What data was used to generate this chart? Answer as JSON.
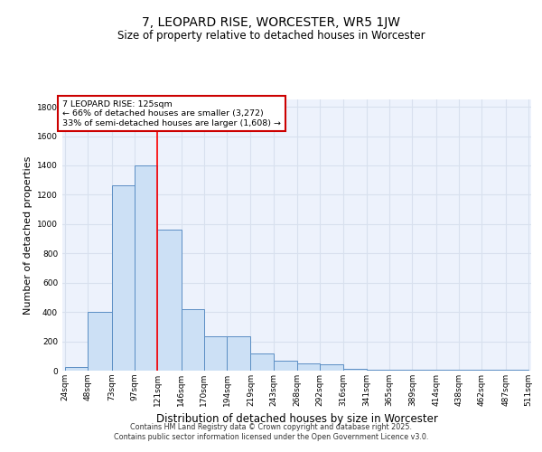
{
  "title": "7, LEOPARD RISE, WORCESTER, WR5 1JW",
  "subtitle": "Size of property relative to detached houses in Worcester",
  "xlabel": "Distribution of detached houses by size in Worcester",
  "ylabel": "Number of detached properties",
  "bin_edges": [
    24,
    48,
    73,
    97,
    121,
    146,
    170,
    194,
    219,
    243,
    268,
    292,
    316,
    341,
    365,
    389,
    414,
    438,
    462,
    487,
    511
  ],
  "bar_heights": [
    25,
    400,
    1265,
    1400,
    960,
    420,
    235,
    235,
    115,
    70,
    50,
    45,
    10,
    8,
    8,
    8,
    8,
    8,
    8,
    5
  ],
  "bar_color": "#cce0f5",
  "bar_edge_color": "#5b8ec4",
  "red_line_x": 121,
  "annotation_text": "7 LEOPARD RISE: 125sqm\n← 66% of detached houses are smaller (3,272)\n33% of semi-detached houses are larger (1,608) →",
  "annotation_box_color": "#ffffff",
  "annotation_box_edge_color": "#cc0000",
  "ylim": [
    0,
    1850
  ],
  "yticks": [
    0,
    200,
    400,
    600,
    800,
    1000,
    1200,
    1400,
    1600,
    1800
  ],
  "grid_color": "#d8e0ee",
  "bg_color": "#edf2fc",
  "footer_line1": "Contains HM Land Registry data © Crown copyright and database right 2025.",
  "footer_line2": "Contains public sector information licensed under the Open Government Licence v3.0.",
  "title_fontsize": 10,
  "subtitle_fontsize": 8.5,
  "tick_fontsize": 6.5,
  "ylabel_fontsize": 8,
  "xlabel_fontsize": 8.5
}
